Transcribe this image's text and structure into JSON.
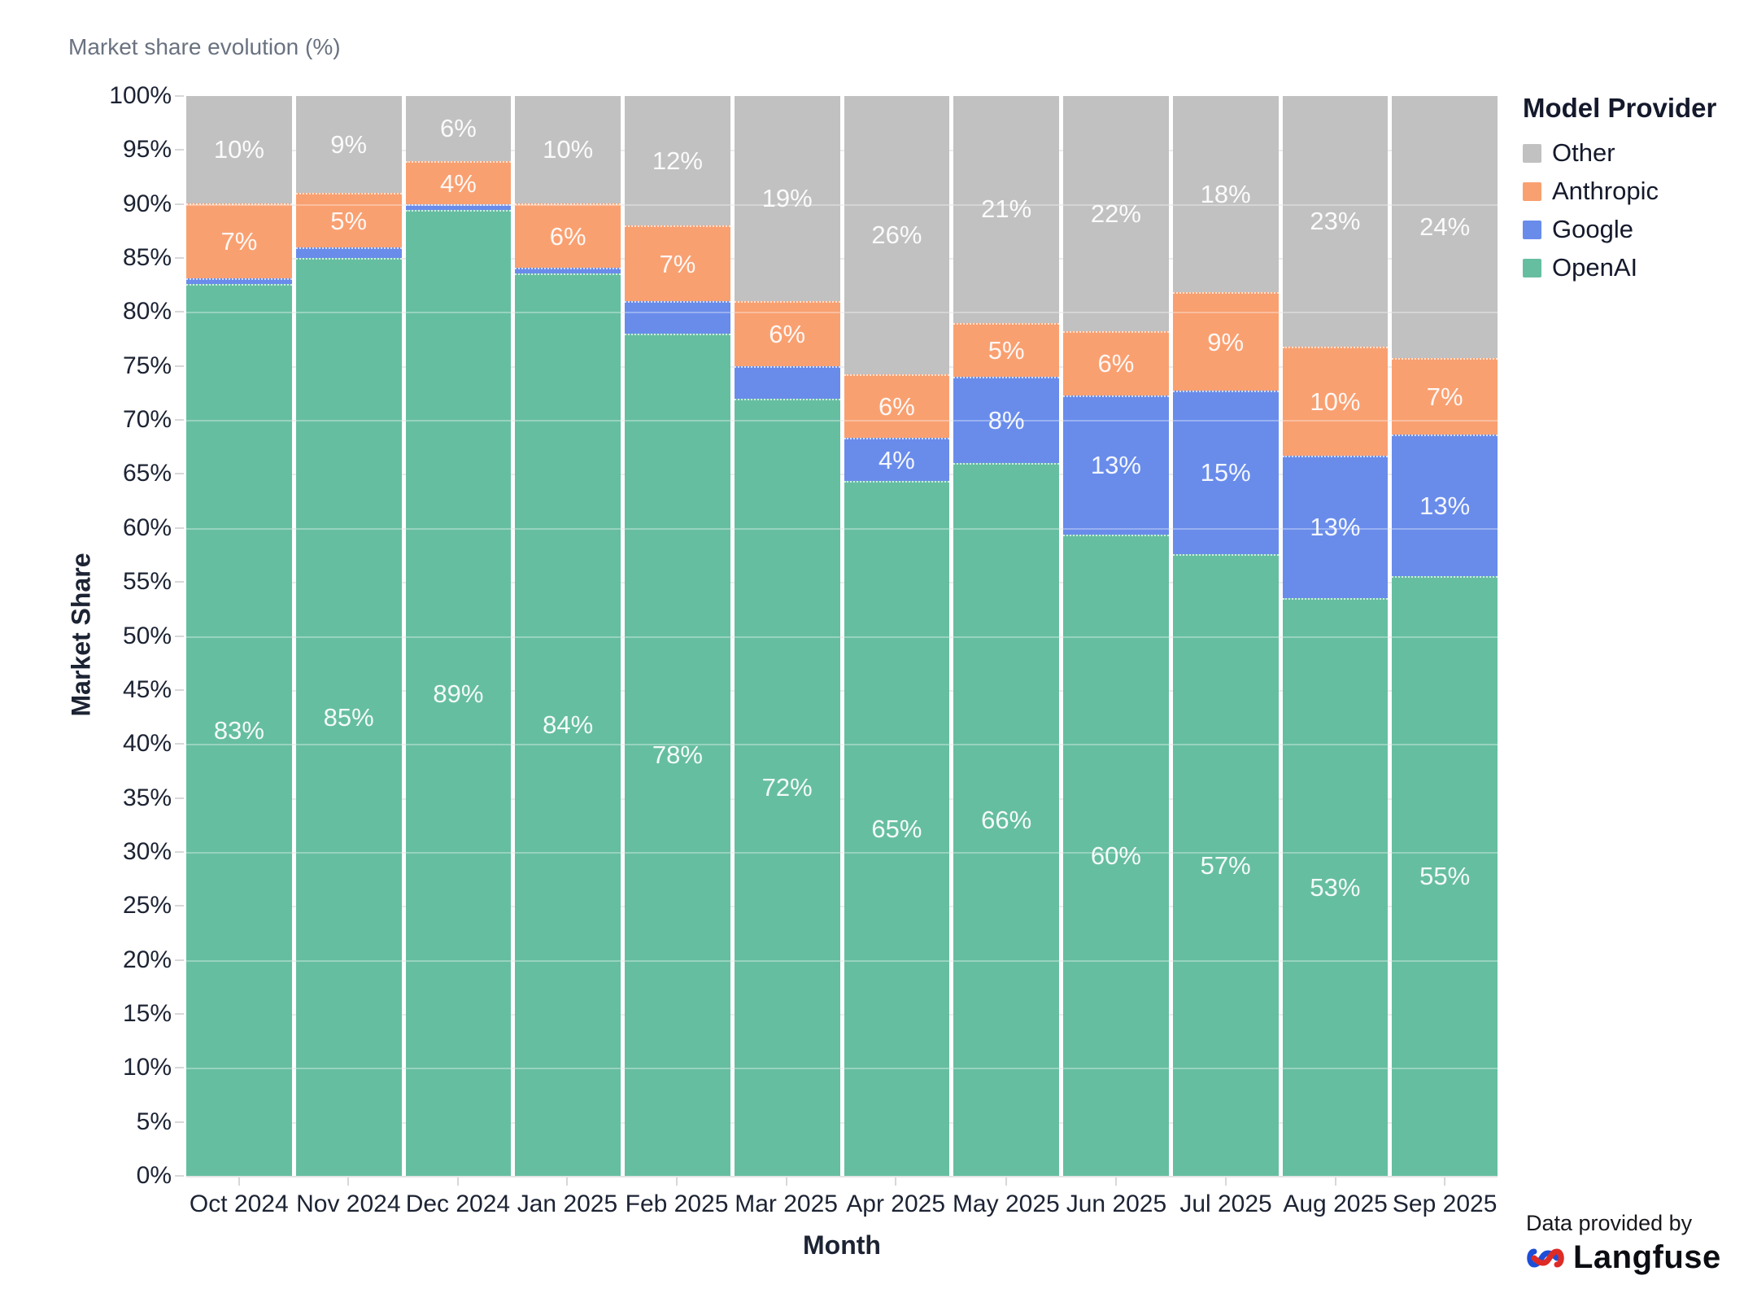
{
  "title": "Market share evolution (%)",
  "footer": {
    "provided_by": "Data provided by",
    "brand": "Langfuse",
    "logo_icon": "langfuse-knot-icon"
  },
  "colors": {
    "openai": "#66BEA1",
    "google": "#698CEB",
    "anthropic": "#F9A071",
    "other": "#C1C1C1",
    "title_text": "#6A7280",
    "axis_text": "#1C2333",
    "bar_label_text": "#FFFFFF",
    "brand_logo_red": "#DE2B26",
    "brand_logo_blue": "#1D4ED8"
  },
  "chart_data": {
    "type": "bar",
    "stacked": true,
    "normalized_to_100": true,
    "title": "Market share evolution (%)",
    "xlabel": "Month",
    "ylabel": "Market Share",
    "ylim": [
      0,
      100
    ],
    "grid": true,
    "y_tick_step": 5,
    "y_tick_labels": [
      "0%",
      "5%",
      "10%",
      "15%",
      "20%",
      "25%",
      "30%",
      "35%",
      "40%",
      "45%",
      "50%",
      "55%",
      "60%",
      "65%",
      "70%",
      "75%",
      "80%",
      "85%",
      "90%",
      "95%",
      "100%"
    ],
    "legend_position": "right",
    "legend_title": "Model Provider",
    "legend_order": [
      "Other",
      "Anthropic",
      "Google",
      "OpenAI"
    ],
    "categories": [
      "Oct 2024",
      "Nov 2024",
      "Dec 2024",
      "Jan 2025",
      "Feb 2025",
      "Mar 2025",
      "Apr 2025",
      "May 2025",
      "Jun 2025",
      "Jul 2025",
      "Aug 2025",
      "Sep 2025"
    ],
    "series": [
      {
        "name": "OpenAI",
        "color": "#66BEA1",
        "values": [
          83,
          85,
          89,
          84,
          78,
          72,
          65,
          66,
          60,
          57,
          53,
          55
        ],
        "labels": [
          "83%",
          "85%",
          "89%",
          "84%",
          "78%",
          "72%",
          "65%",
          "66%",
          "60%",
          "57%",
          "53%",
          "55%"
        ]
      },
      {
        "name": "Google",
        "color": "#698CEB",
        "values": [
          0.5,
          1,
          0.5,
          0.5,
          3,
          3,
          4,
          8,
          13,
          15,
          13,
          13
        ],
        "labels": [
          null,
          null,
          null,
          null,
          null,
          null,
          "4%",
          "8%",
          "13%",
          "15%",
          "13%",
          "13%"
        ]
      },
      {
        "name": "Anthropic",
        "color": "#F9A071",
        "values": [
          7,
          5,
          4,
          6,
          7,
          6,
          6,
          5,
          6,
          9,
          10,
          7
        ],
        "labels": [
          "7%",
          "5%",
          "4%",
          "6%",
          "7%",
          "6%",
          "6%",
          "5%",
          "6%",
          "9%",
          "10%",
          "7%"
        ]
      },
      {
        "name": "Other",
        "color": "#C1C1C1",
        "values": [
          10,
          9,
          6,
          10,
          12,
          19,
          26,
          21,
          22,
          18,
          23,
          24
        ],
        "labels": [
          "10%",
          "9%",
          "6%",
          "10%",
          "12%",
          "19%",
          "26%",
          "21%",
          "22%",
          "18%",
          "23%",
          "24%"
        ]
      }
    ]
  }
}
